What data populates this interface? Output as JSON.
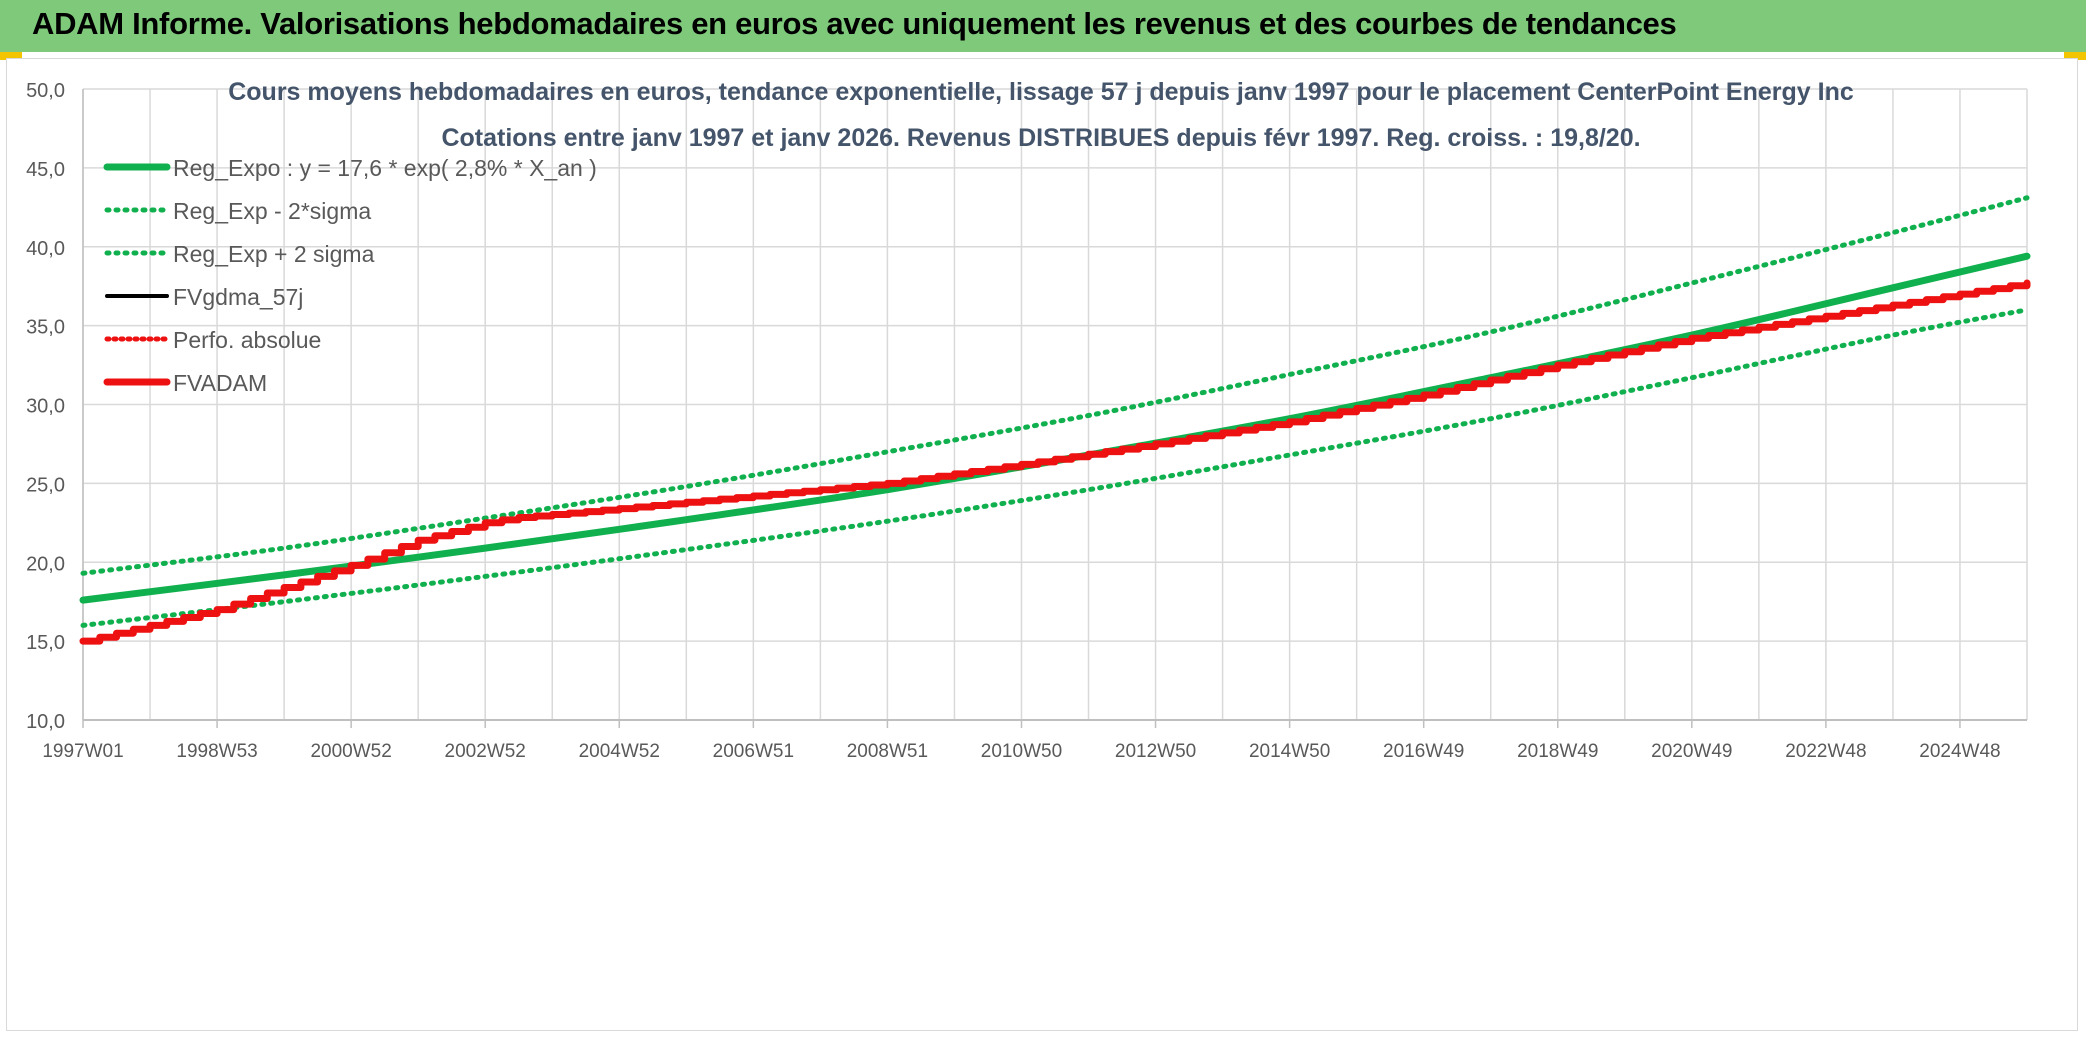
{
  "banner": {
    "title": "ADAM Informe. Valorisations hebdomadaires en euros avec uniquement les revenus et des courbes de tendances"
  },
  "colors": {
    "banner_bg": "#7fc97b",
    "reg_green": "#11b04f",
    "adam_red": "#ee1111",
    "grid": "#d9d9d9",
    "text": "#595959",
    "title_text": "#44546a"
  },
  "chart_data": {
    "type": "line",
    "title": "Cours moyens hebdomadaires en euros, tendance exponentielle, lissage 57 j depuis janv 1997 pour le placement CenterPoint Energy Inc",
    "subtitle": "Cotations entre janv 1997 et janv 2026. Revenus DISTRIBUES depuis févr 1997. Reg. croiss. : 19,8/20.",
    "ylim": [
      10,
      50
    ],
    "y_ticks": [
      "10,0",
      "15,0",
      "20,0",
      "25,0",
      "30,0",
      "35,0",
      "40,0",
      "45,0",
      "50,0"
    ],
    "x_start_year": 1997,
    "x_end_year": 2026,
    "x_ticks": [
      {
        "label": "1997W01",
        "year": 1997.0
      },
      {
        "label": "1998W53",
        "year": 1999.0
      },
      {
        "label": "2000W52",
        "year": 2001.0
      },
      {
        "label": "2002W52",
        "year": 2003.0
      },
      {
        "label": "2004W52",
        "year": 2005.0
      },
      {
        "label": "2006W51",
        "year": 2007.0
      },
      {
        "label": "2008W51",
        "year": 2009.0
      },
      {
        "label": "2010W50",
        "year": 2011.0
      },
      {
        "label": "2012W50",
        "year": 2013.0
      },
      {
        "label": "2014W50",
        "year": 2015.0
      },
      {
        "label": "2016W49",
        "year": 2017.0
      },
      {
        "label": "2018W49",
        "year": 2019.0
      },
      {
        "label": "2020W49",
        "year": 2021.0
      },
      {
        "label": "2022W48",
        "year": 2023.0
      },
      {
        "label": "2024W48",
        "year": 2025.0
      }
    ],
    "legend_position": "top-left",
    "grid": true,
    "series": [
      {
        "name": "Reg_Expo : y = 17,6 * exp( 2,8% *  X_an )",
        "style": "solid-thick",
        "color": "#11b04f",
        "x": [
          1997,
          2000,
          2003,
          2006,
          2009,
          2012,
          2015,
          2018,
          2021,
          2024,
          2026
        ],
        "values": [
          17.6,
          19.2,
          20.9,
          22.7,
          24.6,
          26.8,
          29.1,
          31.7,
          34.4,
          37.4,
          39.4
        ]
      },
      {
        "name": "Reg_Exp - 2*sigma",
        "style": "dotted",
        "color": "#11b04f",
        "x": [
          1997,
          2000,
          2003,
          2006,
          2009,
          2012,
          2015,
          2018,
          2021,
          2024,
          2026
        ],
        "values": [
          16.0,
          17.5,
          19.1,
          20.8,
          22.6,
          24.6,
          26.8,
          29.1,
          31.7,
          34.4,
          36.0
        ]
      },
      {
        "name": "Reg_Exp + 2 sigma",
        "style": "dotted",
        "color": "#11b04f",
        "x": [
          1997,
          2000,
          2003,
          2006,
          2009,
          2012,
          2015,
          2018,
          2021,
          2024,
          2026
        ],
        "values": [
          19.3,
          20.9,
          22.8,
          24.8,
          27.0,
          29.3,
          31.9,
          34.6,
          37.7,
          40.9,
          43.1
        ]
      },
      {
        "name": "FVgdma_57j",
        "style": "solid-thin",
        "color": "#000000",
        "x": [
          1997,
          1999,
          2001,
          2002,
          2003,
          2003.4,
          2005,
          2007,
          2009,
          2011,
          2013,
          2015,
          2017,
          2019,
          2021,
          2023,
          2026
        ],
        "values": [
          15.0,
          17.0,
          19.8,
          21.4,
          22.5,
          22.8,
          23.4,
          24.2,
          25.0,
          26.2,
          27.5,
          28.9,
          30.6,
          32.5,
          34.2,
          35.6,
          37.7
        ]
      },
      {
        "name": "Perfo. absolue",
        "style": "dotted-thin",
        "color": "#ee1111",
        "x": [
          1997,
          1999,
          2001,
          2002,
          2003,
          2003.4,
          2005,
          2007,
          2009,
          2011,
          2013,
          2015,
          2017,
          2019,
          2021,
          2023,
          2026
        ],
        "values": [
          15.0,
          17.0,
          19.8,
          21.4,
          22.5,
          22.8,
          23.4,
          24.2,
          25.0,
          26.2,
          27.5,
          28.9,
          30.6,
          32.5,
          34.2,
          35.6,
          37.7
        ]
      },
      {
        "name": "FVADAM",
        "style": "solid-thick",
        "color": "#ee1111",
        "x": [
          1997,
          1999,
          2001,
          2002,
          2003,
          2003.4,
          2005,
          2007,
          2009,
          2011,
          2013,
          2015,
          2017,
          2019,
          2021,
          2023,
          2026
        ],
        "values": [
          15.0,
          17.0,
          19.8,
          21.4,
          22.5,
          22.8,
          23.4,
          24.2,
          25.0,
          26.2,
          27.5,
          28.9,
          30.6,
          32.5,
          34.2,
          35.6,
          37.7
        ]
      }
    ]
  }
}
